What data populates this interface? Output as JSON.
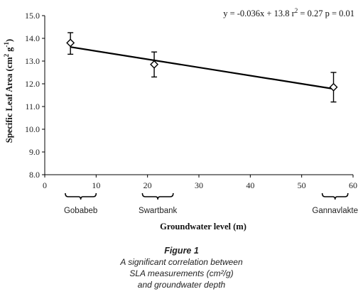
{
  "chart_data": {
    "type": "scatter",
    "equation": "y = -0.036x + 13.8 r",
    "equation_exp": "2",
    "equation_rest": " = 0.27 p = 0.01",
    "ylabel": "Specific Leaf Area (cm",
    "ylabel_exp1": "2",
    "ylabel_mid": " g",
    "ylabel_exp2": "-1",
    "ylabel_end": ")",
    "xlabel": "Groundwater level (m)",
    "xlim": [
      0,
      60
    ],
    "ylim": [
      8.0,
      15.0
    ],
    "x_ticks": [
      0,
      10,
      20,
      30,
      40,
      50,
      60
    ],
    "x_tick_labels": [
      "0",
      "10",
      "20",
      "30",
      "40",
      "50",
      "60"
    ],
    "y_ticks": [
      8,
      9,
      10,
      11,
      12,
      13,
      14,
      15
    ],
    "y_tick_labels": [
      "8.0",
      "9.0",
      "10.0",
      "11.0",
      "12.0",
      "13.0",
      "14.0",
      "15.0"
    ],
    "points": [
      {
        "x": 5,
        "y": 13.8,
        "err_low": 13.3,
        "err_high": 14.25
      },
      {
        "x": 21.3,
        "y": 12.85,
        "err_low": 12.3,
        "err_high": 13.4
      },
      {
        "x": 56.2,
        "y": 11.85,
        "err_low": 11.2,
        "err_high": 12.5
      }
    ],
    "trendline": {
      "slope": -0.036,
      "intercept": 13.8
    },
    "sites": [
      {
        "name": "Gobabeb",
        "x_from": 4,
        "x_to": 10
      },
      {
        "name": "Swartbank",
        "x_from": 19,
        "x_to": 25
      },
      {
        "name": "Gannavlakte",
        "x_from": 54,
        "x_to": 59
      }
    ],
    "grid": false,
    "colors": {
      "line": "#000000",
      "marker_fill": "#ffffff"
    }
  },
  "caption": {
    "title": "Figure 1",
    "line1": "A significant correlation between",
    "line2": "SLA measurements (cm²/g)",
    "line3": "and groundwater depth"
  }
}
